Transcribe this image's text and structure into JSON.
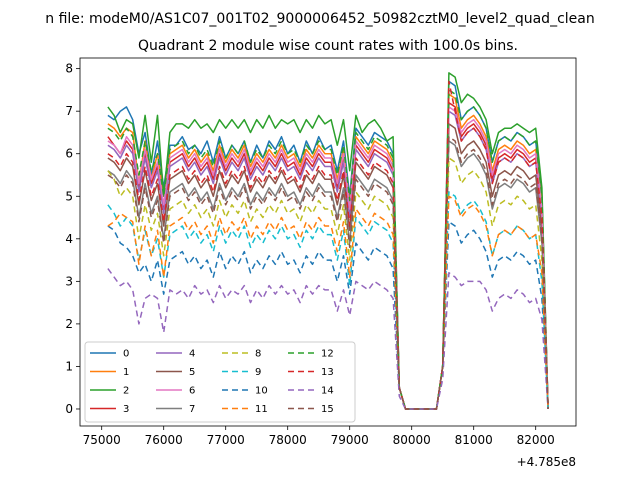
{
  "chart_data": {
    "type": "line",
    "suptitle": "n file: modeM0/AS1C07_001T02_9000006452_50982cztM0_level2_quad_clean",
    "title": "Quadrant 2 module wise count rates with 100.0s bins.",
    "xlabel": "",
    "ylabel": "",
    "x_offset_label": "+4.785e8",
    "xlim": [
      74650,
      82650
    ],
    "ylim": [
      -0.4,
      8.25
    ],
    "xticks": [
      75000,
      76000,
      77000,
      78000,
      79000,
      80000,
      81000,
      82000
    ],
    "yticks": [
      0,
      1,
      2,
      3,
      4,
      5,
      6,
      7,
      8
    ],
    "x_start": 75100,
    "x_step": 100,
    "series": [
      {
        "name": "0",
        "color": "#1f77b4",
        "dash": "",
        "values": [
          6.9,
          6.8,
          7.0,
          7.1,
          6.8,
          6.0,
          6.5,
          5.5,
          6.3,
          5.2,
          6.2,
          6.2,
          6.4,
          6.1,
          6.2,
          6.0,
          6.3,
          5.8,
          6.4,
          5.9,
          6.2,
          6.0,
          6.3,
          5.8,
          6.2,
          5.9,
          6.3,
          6.1,
          6.4,
          6.0,
          6.2,
          5.8,
          6.3,
          6.0,
          6.4,
          6.1,
          6.2,
          5.6,
          6.3,
          5.0,
          6.6,
          6.4,
          6.2,
          6.5,
          6.4,
          6.3,
          6.0,
          0.5,
          0.0,
          0.0,
          0.0,
          0.0,
          0.0,
          0.0,
          1.0,
          7.7,
          7.6,
          6.8,
          7.0,
          7.1,
          6.9,
          6.6,
          5.8,
          6.3,
          6.4,
          6.3,
          6.5,
          6.4,
          6.2,
          6.3,
          5.0,
          0.0
        ]
      },
      {
        "name": "1",
        "color": "#ff7f0e",
        "dash": "",
        "values": [
          6.7,
          6.6,
          6.4,
          6.6,
          6.5,
          5.3,
          6.3,
          5.4,
          6.0,
          5.0,
          6.0,
          6.1,
          6.2,
          5.9,
          6.1,
          5.8,
          6.0,
          5.6,
          6.2,
          5.8,
          6.1,
          5.9,
          6.2,
          5.7,
          6.0,
          5.8,
          6.1,
          5.9,
          6.2,
          5.9,
          6.0,
          5.7,
          6.1,
          5.9,
          6.2,
          6.0,
          6.0,
          5.4,
          6.1,
          4.8,
          6.4,
          6.2,
          6.0,
          6.3,
          6.2,
          6.1,
          5.8,
          0.5,
          0.0,
          0.0,
          0.0,
          0.0,
          0.0,
          0.0,
          1.0,
          7.4,
          7.3,
          6.6,
          6.8,
          6.9,
          6.7,
          6.4,
          5.6,
          6.1,
          6.2,
          6.1,
          6.3,
          6.2,
          6.0,
          6.1,
          4.8,
          0.0
        ]
      },
      {
        "name": "2",
        "color": "#2ca02c",
        "dash": "",
        "values": [
          7.1,
          6.9,
          6.5,
          6.8,
          6.7,
          5.9,
          6.9,
          5.8,
          6.9,
          5.0,
          6.5,
          6.7,
          6.7,
          6.6,
          6.8,
          6.6,
          6.7,
          6.5,
          6.8,
          6.6,
          6.8,
          6.6,
          6.8,
          6.5,
          6.8,
          6.6,
          6.9,
          6.6,
          6.8,
          6.7,
          6.8,
          6.5,
          6.8,
          6.6,
          6.9,
          6.7,
          6.8,
          6.2,
          6.8,
          5.6,
          6.9,
          6.5,
          6.7,
          6.8,
          6.6,
          6.3,
          6.4,
          0.5,
          0.0,
          0.0,
          0.0,
          0.0,
          0.0,
          0.0,
          1.0,
          7.9,
          7.8,
          7.2,
          7.4,
          7.3,
          7.1,
          6.8,
          6.0,
          6.5,
          6.6,
          6.6,
          6.7,
          6.6,
          6.5,
          6.6,
          5.2,
          0.0
        ]
      },
      {
        "name": "3",
        "color": "#d62728",
        "dash": "",
        "values": [
          6.4,
          6.2,
          6.0,
          6.3,
          6.1,
          5.2,
          6.0,
          5.3,
          5.7,
          4.7,
          5.8,
          5.9,
          6.0,
          5.7,
          5.9,
          5.6,
          5.8,
          5.4,
          6.0,
          5.6,
          5.9,
          5.7,
          6.0,
          5.5,
          5.8,
          5.6,
          5.9,
          5.7,
          6.0,
          5.7,
          5.8,
          5.5,
          5.9,
          5.7,
          6.0,
          5.8,
          5.8,
          5.2,
          5.9,
          4.6,
          6.2,
          6.0,
          5.8,
          6.1,
          6.0,
          5.9,
          5.6,
          0.5,
          0.0,
          0.0,
          0.0,
          0.0,
          0.0,
          0.0,
          1.0,
          7.2,
          7.1,
          6.4,
          6.6,
          6.7,
          6.5,
          6.2,
          5.4,
          5.9,
          6.0,
          5.9,
          6.1,
          6.0,
          5.8,
          5.9,
          4.6,
          0.0
        ]
      },
      {
        "name": "4",
        "color": "#9467bd",
        "dash": "",
        "values": [
          6.2,
          6.1,
          5.9,
          6.2,
          6.0,
          5.1,
          5.9,
          5.2,
          5.6,
          4.6,
          5.7,
          5.8,
          5.9,
          5.6,
          5.8,
          5.5,
          5.7,
          5.3,
          5.9,
          5.5,
          5.8,
          5.6,
          5.9,
          5.4,
          5.7,
          5.5,
          5.8,
          5.6,
          5.9,
          5.6,
          5.7,
          5.4,
          5.8,
          5.6,
          5.9,
          5.7,
          5.7,
          5.1,
          5.8,
          4.5,
          6.1,
          5.9,
          5.7,
          6.0,
          5.9,
          5.8,
          5.5,
          0.5,
          0.0,
          0.0,
          0.0,
          0.0,
          0.0,
          0.0,
          1.0,
          7.0,
          6.9,
          6.3,
          6.5,
          6.6,
          6.4,
          6.1,
          5.3,
          5.8,
          5.9,
          5.8,
          6.0,
          5.9,
          5.7,
          5.8,
          4.5,
          0.0
        ]
      },
      {
        "name": "5",
        "color": "#8c564b",
        "dash": "",
        "values": [
          5.9,
          5.8,
          5.6,
          5.9,
          5.7,
          4.8,
          5.6,
          4.9,
          5.3,
          4.3,
          5.4,
          5.5,
          5.6,
          5.3,
          5.5,
          5.2,
          5.4,
          5.0,
          5.6,
          5.2,
          5.5,
          5.3,
          5.6,
          5.1,
          5.4,
          5.2,
          5.5,
          5.3,
          5.6,
          5.3,
          5.4,
          5.1,
          5.5,
          5.3,
          5.6,
          5.4,
          5.4,
          4.8,
          5.5,
          4.2,
          5.8,
          5.6,
          5.4,
          5.7,
          5.6,
          5.5,
          5.2,
          0.5,
          0.0,
          0.0,
          0.0,
          0.0,
          0.0,
          0.0,
          1.0,
          6.7,
          6.6,
          6.0,
          6.2,
          6.3,
          6.1,
          5.8,
          5.0,
          5.5,
          5.6,
          5.5,
          5.7,
          5.6,
          5.4,
          5.5,
          4.2,
          0.0
        ]
      },
      {
        "name": "6",
        "color": "#e377c2",
        "dash": "",
        "values": [
          6.3,
          6.2,
          6.0,
          6.4,
          6.2,
          5.3,
          6.1,
          5.4,
          5.8,
          4.8,
          5.9,
          6.0,
          6.1,
          5.8,
          6.0,
          5.7,
          5.9,
          5.5,
          6.1,
          5.7,
          6.0,
          5.8,
          6.1,
          5.6,
          5.9,
          5.7,
          6.0,
          5.8,
          6.1,
          5.8,
          5.9,
          5.6,
          6.0,
          5.8,
          6.1,
          5.9,
          5.9,
          5.3,
          6.0,
          4.7,
          6.3,
          6.1,
          5.9,
          6.2,
          6.1,
          6.0,
          5.7,
          0.5,
          0.0,
          0.0,
          0.0,
          0.0,
          0.0,
          0.0,
          1.0,
          7.1,
          7.0,
          6.5,
          6.7,
          6.8,
          6.6,
          6.3,
          5.5,
          6.0,
          6.1,
          6.0,
          6.2,
          6.1,
          5.9,
          6.0,
          4.7,
          0.0
        ]
      },
      {
        "name": "7",
        "color": "#7f7f7f",
        "dash": "",
        "values": [
          5.6,
          5.5,
          5.3,
          5.6,
          5.4,
          4.5,
          5.3,
          4.6,
          5.0,
          4.0,
          5.1,
          5.2,
          5.3,
          5.0,
          5.2,
          4.9,
          5.1,
          4.7,
          5.3,
          4.9,
          5.2,
          5.0,
          5.3,
          4.8,
          5.1,
          4.9,
          5.2,
          5.0,
          5.3,
          5.0,
          5.1,
          4.8,
          5.2,
          5.0,
          5.3,
          5.1,
          5.1,
          4.5,
          5.2,
          3.9,
          5.5,
          5.3,
          5.1,
          5.4,
          5.3,
          5.2,
          4.9,
          0.5,
          0.0,
          0.0,
          0.0,
          0.0,
          0.0,
          0.0,
          1.0,
          6.3,
          6.2,
          5.7,
          5.9,
          6.0,
          5.8,
          5.5,
          4.7,
          5.2,
          5.3,
          5.2,
          5.4,
          5.3,
          5.1,
          5.2,
          3.9,
          0.0
        ]
      },
      {
        "name": "8",
        "color": "#bcbd22",
        "dash": "6,4",
        "values": [
          5.6,
          5.4,
          5.0,
          5.2,
          5.0,
          4.0,
          4.8,
          4.2,
          4.6,
          3.6,
          4.7,
          4.8,
          4.9,
          4.6,
          4.8,
          4.5,
          4.7,
          4.3,
          4.9,
          4.5,
          4.8,
          4.6,
          4.9,
          4.4,
          4.7,
          4.5,
          4.8,
          4.6,
          4.9,
          4.6,
          4.7,
          4.4,
          4.8,
          4.6,
          4.9,
          4.7,
          4.7,
          4.1,
          4.8,
          3.5,
          5.1,
          4.9,
          4.7,
          5.0,
          4.9,
          4.8,
          4.5,
          0.5,
          0.0,
          0.0,
          0.0,
          0.0,
          0.0,
          0.0,
          1.0,
          5.9,
          5.8,
          5.3,
          5.5,
          5.6,
          5.4,
          5.1,
          4.3,
          4.8,
          4.9,
          4.8,
          5.0,
          4.9,
          4.7,
          4.8,
          3.5,
          0.0
        ]
      },
      {
        "name": "9",
        "color": "#17becf",
        "dash": "6,4",
        "values": [
          4.8,
          4.6,
          4.3,
          4.5,
          4.3,
          3.5,
          4.2,
          3.6,
          4.0,
          3.1,
          4.1,
          4.2,
          4.3,
          4.0,
          4.2,
          3.9,
          4.1,
          3.7,
          4.3,
          3.9,
          4.2,
          4.0,
          4.3,
          3.8,
          4.1,
          3.9,
          4.2,
          4.0,
          4.3,
          4.0,
          4.1,
          3.8,
          4.2,
          4.0,
          4.3,
          4.1,
          4.1,
          3.5,
          4.2,
          2.9,
          4.5,
          4.3,
          4.1,
          4.4,
          4.3,
          4.2,
          3.9,
          0.5,
          0.0,
          0.0,
          0.0,
          0.0,
          0.0,
          0.0,
          1.0,
          5.1,
          5.0,
          4.6,
          4.8,
          4.9,
          4.7,
          4.4,
          3.6,
          4.1,
          4.2,
          4.1,
          4.3,
          4.2,
          4.0,
          4.1,
          3.0,
          0.0
        ]
      },
      {
        "name": "10",
        "color": "#1f77b4",
        "dash": "6,4",
        "values": [
          4.3,
          4.2,
          3.9,
          3.8,
          3.6,
          3.2,
          3.4,
          3.0,
          3.5,
          2.7,
          3.5,
          3.6,
          3.7,
          3.4,
          3.6,
          3.3,
          3.5,
          3.1,
          3.7,
          3.3,
          3.6,
          3.4,
          3.7,
          3.2,
          3.5,
          3.3,
          3.6,
          3.4,
          3.7,
          3.4,
          3.5,
          3.2,
          3.6,
          3.4,
          3.7,
          3.5,
          3.5,
          3.0,
          3.6,
          2.7,
          3.9,
          3.7,
          3.5,
          3.8,
          3.7,
          3.6,
          3.3,
          0.5,
          0.0,
          0.0,
          0.0,
          0.0,
          0.0,
          0.0,
          1.0,
          4.4,
          4.3,
          3.9,
          4.1,
          4.2,
          4.0,
          3.7,
          3.1,
          3.5,
          3.6,
          3.5,
          3.7,
          3.6,
          3.4,
          3.5,
          2.6,
          0.0
        ]
      },
      {
        "name": "11",
        "color": "#ff7f0e",
        "dash": "6,4",
        "values": [
          4.3,
          4.4,
          4.6,
          4.5,
          4.4,
          3.4,
          4.3,
          3.6,
          4.2,
          3.1,
          4.3,
          4.4,
          4.5,
          4.2,
          4.4,
          4.1,
          4.3,
          3.9,
          4.5,
          4.1,
          4.4,
          4.2,
          4.5,
          4.0,
          4.3,
          4.1,
          4.4,
          4.2,
          4.5,
          4.2,
          4.3,
          4.0,
          4.4,
          4.2,
          4.5,
          4.3,
          4.3,
          3.7,
          4.4,
          3.1,
          4.7,
          4.5,
          4.3,
          4.6,
          4.5,
          4.4,
          4.1,
          0.5,
          0.0,
          0.0,
          0.0,
          0.0,
          0.0,
          0.0,
          1.0,
          5.0,
          4.9,
          4.5,
          4.7,
          4.8,
          4.6,
          4.3,
          3.6,
          4.1,
          4.2,
          4.1,
          4.3,
          4.2,
          4.0,
          4.1,
          3.2,
          0.0
        ]
      },
      {
        "name": "12",
        "color": "#2ca02c",
        "dash": "6,4",
        "values": [
          6.6,
          6.5,
          6.3,
          6.6,
          6.4,
          5.5,
          6.3,
          5.6,
          6.0,
          5.0,
          6.1,
          6.2,
          6.3,
          6.0,
          6.2,
          5.9,
          6.1,
          5.7,
          6.3,
          5.9,
          6.2,
          6.0,
          6.3,
          5.8,
          6.1,
          5.9,
          6.2,
          6.0,
          6.3,
          6.0,
          6.1,
          5.8,
          6.2,
          6.0,
          6.3,
          6.1,
          6.1,
          5.5,
          6.2,
          4.9,
          6.5,
          6.3,
          6.1,
          6.4,
          6.3,
          6.2,
          5.9,
          0.5,
          0.0,
          0.0,
          0.0,
          0.0,
          0.0,
          0.0,
          1.0,
          7.5,
          7.4,
          6.8,
          7.0,
          7.1,
          6.9,
          6.6,
          5.8,
          6.3,
          6.4,
          6.3,
          6.5,
          6.4,
          6.2,
          6.3,
          5.0,
          0.0
        ]
      },
      {
        "name": "13",
        "color": "#d62728",
        "dash": "6,4",
        "values": [
          6.0,
          5.9,
          5.7,
          6.0,
          5.8,
          4.9,
          5.7,
          5.0,
          5.4,
          4.4,
          5.5,
          5.6,
          5.7,
          5.4,
          5.6,
          5.3,
          5.5,
          5.1,
          5.7,
          5.3,
          5.6,
          5.4,
          5.7,
          5.2,
          5.5,
          5.3,
          5.6,
          5.4,
          5.7,
          5.4,
          5.5,
          5.2,
          5.6,
          5.4,
          5.7,
          5.5,
          5.5,
          4.9,
          5.6,
          4.3,
          5.9,
          5.7,
          5.5,
          5.8,
          5.7,
          5.6,
          5.3,
          0.5,
          0.0,
          0.0,
          0.0,
          0.0,
          0.0,
          0.0,
          1.0,
          7.7,
          7.0,
          6.3,
          6.5,
          6.6,
          6.4,
          6.1,
          5.3,
          5.8,
          5.9,
          5.8,
          6.0,
          5.9,
          5.7,
          5.8,
          4.5,
          0.0
        ]
      },
      {
        "name": "14",
        "color": "#9467bd",
        "dash": "6,4",
        "values": [
          3.3,
          3.1,
          2.9,
          3.0,
          2.8,
          2.0,
          2.6,
          2.7,
          2.6,
          1.8,
          2.8,
          2.7,
          2.8,
          2.6,
          2.9,
          2.7,
          2.8,
          2.5,
          2.9,
          2.6,
          2.8,
          2.7,
          2.9,
          2.5,
          2.8,
          2.6,
          2.9,
          2.7,
          2.9,
          2.7,
          2.8,
          2.5,
          2.9,
          2.7,
          2.9,
          2.8,
          2.8,
          2.3,
          2.8,
          2.2,
          3.0,
          2.9,
          2.8,
          3.0,
          2.9,
          2.8,
          2.6,
          0.3,
          0.0,
          0.0,
          0.0,
          0.0,
          0.0,
          0.0,
          0.7,
          3.2,
          3.1,
          2.9,
          3.0,
          3.0,
          3.0,
          2.8,
          2.3,
          2.6,
          2.7,
          2.6,
          2.8,
          2.7,
          2.5,
          2.6,
          2.1,
          0.0
        ]
      },
      {
        "name": "15",
        "color": "#8c564b",
        "dash": "6,4",
        "values": [
          5.5,
          5.4,
          5.2,
          5.5,
          5.3,
          4.4,
          5.2,
          4.5,
          4.9,
          3.9,
          5.0,
          5.1,
          5.2,
          4.9,
          5.1,
          4.8,
          5.0,
          4.6,
          5.2,
          4.8,
          5.1,
          4.9,
          5.2,
          4.7,
          5.0,
          4.8,
          5.1,
          4.9,
          5.2,
          4.9,
          5.0,
          4.7,
          5.1,
          4.9,
          5.2,
          5.0,
          5.0,
          4.4,
          5.1,
          3.8,
          5.4,
          5.2,
          5.0,
          5.3,
          5.2,
          5.1,
          4.8,
          0.5,
          0.0,
          0.0,
          0.0,
          0.0,
          0.0,
          0.0,
          1.0,
          6.4,
          6.3,
          5.8,
          6.0,
          6.1,
          5.9,
          5.6,
          4.8,
          5.3,
          5.4,
          5.3,
          5.5,
          5.4,
          5.2,
          5.3,
          4.0,
          0.0
        ]
      }
    ],
    "legend": {
      "placement": "lower-left",
      "columns": 4
    },
    "grid": false
  }
}
